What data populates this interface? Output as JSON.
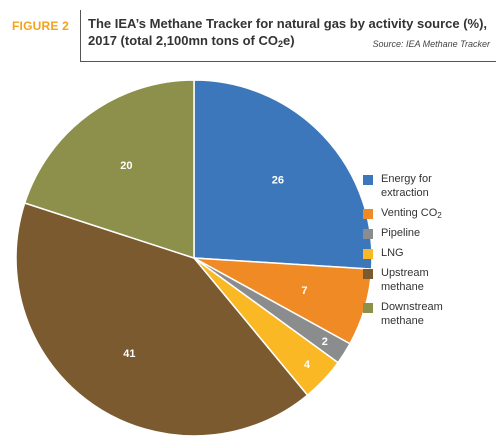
{
  "header": {
    "figure_label": "FIGURE 2",
    "title_line1": "The IEA’s Methane Tracker for natural gas by activity source (%),",
    "title_line2_prefix": "2017 (total 2,100mn tons of CO",
    "title_line2_sub": "2",
    "title_line2_suffix": "e)",
    "source": "Source: IEA Methane Tracker"
  },
  "chart_data": {
    "type": "pie",
    "title": "The IEA’s Methane Tracker for natural gas by activity source (%), 2017 (total 2,100mn tons of CO2e)",
    "unit": "%",
    "start_angle_deg": 0,
    "direction": "clockwise",
    "legend_position": "right",
    "slices": [
      {
        "label": "Energy for extraction",
        "label_lines": [
          "Energy for",
          "extraction"
        ],
        "value": 26,
        "value_label": "26",
        "color": "#3d77bb"
      },
      {
        "label": "Venting CO2",
        "label_main": "Venting CO",
        "label_sub": "2",
        "value": 7,
        "value_label": "7",
        "color": "#f08a24"
      },
      {
        "label": "Pipeline",
        "label_lines": [
          "Pipeline"
        ],
        "value": 2,
        "value_label": "2",
        "color": "#8a8c8e"
      },
      {
        "label": "LNG",
        "label_lines": [
          "LNG"
        ],
        "value": 4,
        "value_label": "4",
        "color": "#fbb825"
      },
      {
        "label": "Upstream methane",
        "label_lines": [
          "Upstream",
          "methane"
        ],
        "value": 41,
        "value_label": "41",
        "color": "#7a5a2e"
      },
      {
        "label": "Downstream methane",
        "label_lines": [
          "Downstream",
          "methane"
        ],
        "value": 20,
        "value_label": "20",
        "color": "#8d904a"
      }
    ]
  }
}
